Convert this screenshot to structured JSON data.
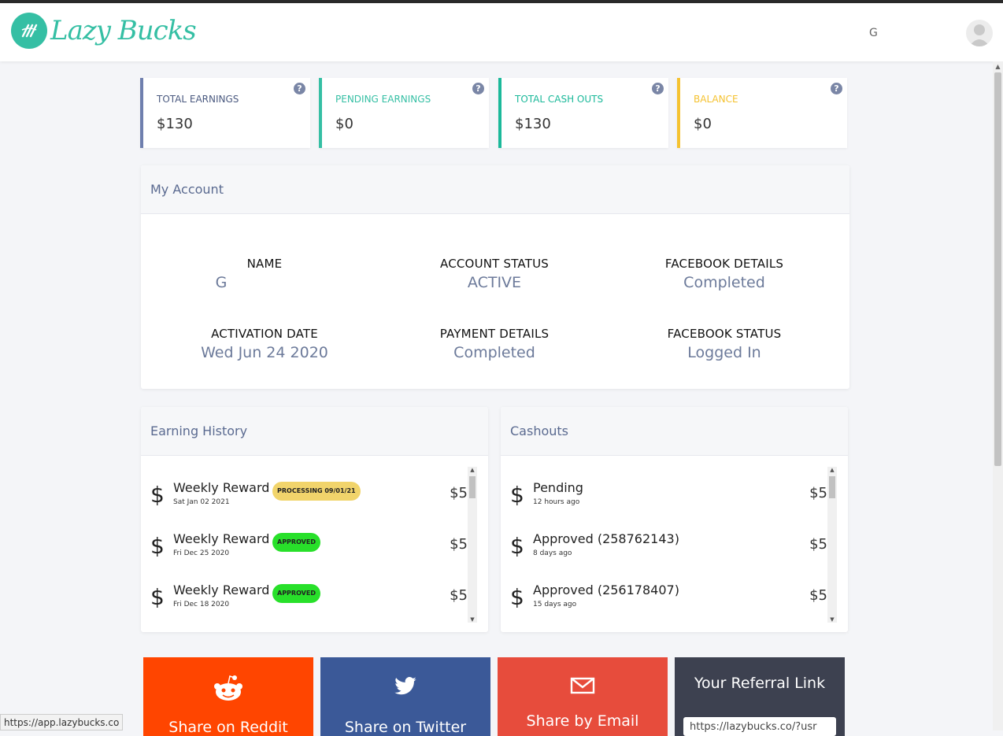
{
  "brand": {
    "name": "Lazy Bucks",
    "color": "#35bfa4"
  },
  "header": {
    "user_initial": "G"
  },
  "stats": [
    {
      "label": "TOTAL EARNINGS",
      "value": "$130",
      "color": "#6f7fae"
    },
    {
      "label": "PENDING EARNINGS",
      "value": "$0",
      "color": "#35bfa4"
    },
    {
      "label": "TOTAL CASH OUTS",
      "value": "$130",
      "color": "#1bb99a"
    },
    {
      "label": "BALANCE",
      "value": "$0",
      "color": "#f5c230"
    }
  ],
  "account": {
    "title": "My Account",
    "fields": [
      {
        "key": "NAME",
        "value": "G"
      },
      {
        "key": "ACCOUNT STATUS",
        "value": "ACTIVE"
      },
      {
        "key": "FACEBOOK DETAILS",
        "value": "Completed"
      },
      {
        "key": "ACTIVATION DATE",
        "value": "Wed Jun 24 2020"
      },
      {
        "key": "PAYMENT DETAILS",
        "value": "Completed"
      },
      {
        "key": "FACEBOOK STATUS",
        "value": "Logged In"
      }
    ]
  },
  "earning_history": {
    "title": "Earning History",
    "rows": [
      {
        "title": "Weekly Reward",
        "date": "Sat Jan 02 2021",
        "badge": "PROCESSING 09/01/21",
        "amount": "$5"
      },
      {
        "title": "Weekly Reward",
        "date": "Fri Dec 25 2020",
        "badge": "APPROVED",
        "amount": "$5"
      },
      {
        "title": "Weekly Reward",
        "date": "Fri Dec 18 2020",
        "badge": "APPROVED",
        "amount": "$5"
      }
    ]
  },
  "cashouts": {
    "title": "Cashouts",
    "rows": [
      {
        "title": "Pending",
        "date": "12 hours ago",
        "amount": "$5"
      },
      {
        "title": "Approved (258762143)",
        "date": "8 days ago",
        "amount": "$5"
      },
      {
        "title": "Approved (256178407)",
        "date": "15 days ago",
        "amount": "$5"
      }
    ]
  },
  "share": [
    {
      "label": "Share on Reddit",
      "icon": "reddit-icon",
      "color": "#ff4500"
    },
    {
      "label": "Share on Twitter",
      "icon": "twitter-icon",
      "color": "#3b5998"
    },
    {
      "label": "Share by Email",
      "icon": "email-icon",
      "color": "#e74c3c"
    }
  ],
  "referral": {
    "title": "Your Referral Link",
    "value": "https://lazybucks.co/?usr",
    "bg": "#3d4150"
  },
  "status_bar": "https://app.lazybucks.co"
}
